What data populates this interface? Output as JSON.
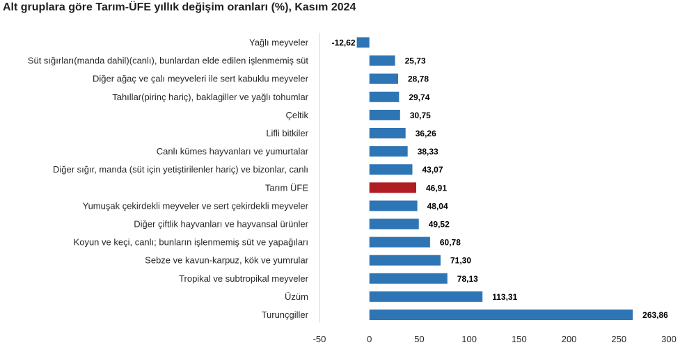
{
  "title": "Alt gruplara göre Tarım-ÜFE yıllık değişim oranları (%), Kasım 2024",
  "chart_data": {
    "type": "bar",
    "orientation": "horizontal",
    "title": "Alt gruplara göre Tarım-ÜFE yıllık değişim oranları (%), Kasım 2024",
    "xlabel": "",
    "ylabel": "",
    "xlim": [
      -50,
      300
    ],
    "xticks": [
      -50,
      0,
      50,
      100,
      150,
      200,
      250,
      300
    ],
    "xtick_labels": [
      "-50",
      "0",
      "50",
      "100",
      "150",
      "200",
      "250",
      "300"
    ],
    "grid": false,
    "legend": "none",
    "colors": {
      "default": "#2e75b6",
      "highlight": "#b01e23"
    },
    "highlight_category": "Tarım ÜFE",
    "bars": [
      {
        "category": "Yağlı meyveler",
        "value": -12.62,
        "label": "-12,62"
      },
      {
        "category": "Süt sığırları(manda dahil)(canlı), bunlardan elde edilen işlenmemiş süt",
        "value": 25.73,
        "label": "25,73"
      },
      {
        "category": "Diğer ağaç ve çalı meyveleri ile sert kabuklu meyveler",
        "value": 28.78,
        "label": "28,78"
      },
      {
        "category": "Tahıllar(pirinç hariç), baklagiller ve yağlı tohumlar",
        "value": 29.74,
        "label": "29,74"
      },
      {
        "category": "Çeltik",
        "value": 30.75,
        "label": "30,75"
      },
      {
        "category": "Lifli bitkiler",
        "value": 36.26,
        "label": "36,26"
      },
      {
        "category": "Canlı kümes hayvanları ve yumurtalar",
        "value": 38.33,
        "label": "38,33"
      },
      {
        "category": "Diğer sığır, manda (süt için yetiştirilenler hariç) ve bizonlar, canlı",
        "value": 43.07,
        "label": "43,07"
      },
      {
        "category": "Tarım ÜFE",
        "value": 46.91,
        "label": "46,91"
      },
      {
        "category": "Yumuşak çekirdekli meyveler ve sert çekirdekli meyveler",
        "value": 48.04,
        "label": "48,04"
      },
      {
        "category": "Diğer çiftlik hayvanları ve hayvansal ürünler",
        "value": 49.52,
        "label": "49,52"
      },
      {
        "category": "Koyun ve keçi, canlı; bunların işlenmemiş süt ve yapağıları",
        "value": 60.78,
        "label": "60,78"
      },
      {
        "category": "Sebze ve kavun-karpuz, kök ve yumrular",
        "value": 71.3,
        "label": "71,30"
      },
      {
        "category": "Tropikal ve subtropikal meyveler",
        "value": 78.13,
        "label": "78,13"
      },
      {
        "category": "Üzüm",
        "value": 113.31,
        "label": "113,31"
      },
      {
        "category": "Turunçgiller",
        "value": 263.86,
        "label": "263,86"
      }
    ]
  }
}
